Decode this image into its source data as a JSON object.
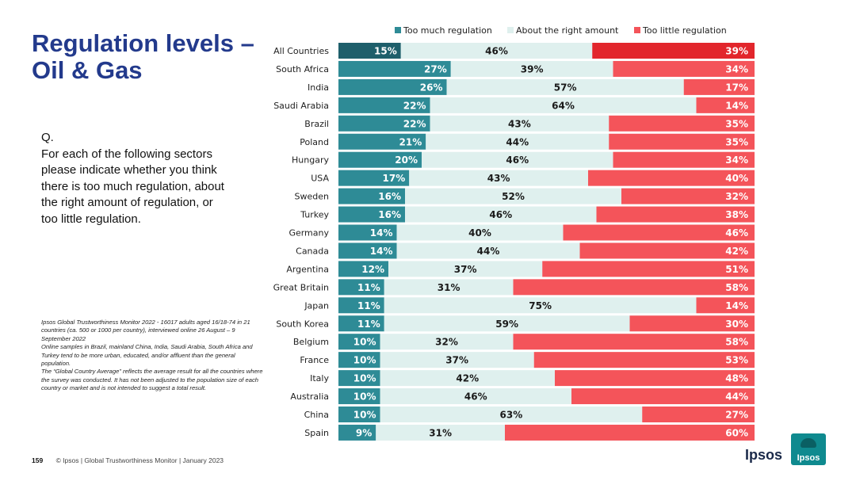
{
  "page": {
    "title": "Regulation levels – Oil & Gas",
    "question_label": "Q.",
    "question_text": "For each of the following sectors please indicate whether you think there is too much regulation, about the right amount of regulation, or too little regulation.",
    "notes": [
      "Ipsos Global Trustworthiness Monitor 2022 - 16017 adults aged 16/18-74 in 21 countries (ca. 500 or 1000 per country), interviewed online 26 August – 9 September 2022",
      "Online samples in Brazil, mainland China, India, Saudi Arabia, South Africa and Turkey tend to be more urban, educated, and/or affluent than the general population.",
      "The “Global Country Average” reflects the average result for all the countries where the survey was conducted. It has not been adjusted to the population size of each country or market and is not intended to suggest a total result."
    ],
    "page_number": "159",
    "footer": "© Ipsos | Global Trustworthiness Monitor | January 2023",
    "logo_text": "Ipsos",
    "logo_badge": "Ipsos"
  },
  "colors": {
    "title": "#233a8c",
    "too_much": "#2e8b96",
    "too_much_highlight": "#1e5f6b",
    "about_right": "#dff0ee",
    "too_little": "#f4545a",
    "too_little_highlight": "#e2262c"
  },
  "chart_data": {
    "type": "bar",
    "orientation": "horizontal",
    "stacked": true,
    "percent_scale": true,
    "title": "Regulation levels – Oil & Gas",
    "legend_position": "top",
    "categories": [
      "All Countries",
      "South Africa",
      "India",
      "Saudi Arabia",
      "Brazil",
      "Poland",
      "Hungary",
      "USA",
      "Sweden",
      "Turkey",
      "Germany",
      "Canada",
      "Argentina",
      "Great Britain",
      "Japan",
      "South Korea",
      "Belgium",
      "France",
      "Italy",
      "Australia",
      "China",
      "Spain"
    ],
    "highlight_category": "All Countries",
    "series": [
      {
        "name": "Too much regulation",
        "values": [
          15,
          27,
          26,
          22,
          22,
          21,
          20,
          17,
          16,
          16,
          14,
          14,
          12,
          11,
          11,
          11,
          10,
          10,
          10,
          10,
          10,
          9
        ]
      },
      {
        "name": "About the right amount",
        "values": [
          46,
          39,
          57,
          64,
          43,
          44,
          46,
          43,
          52,
          46,
          40,
          44,
          37,
          31,
          75,
          59,
          32,
          37,
          42,
          46,
          63,
          31
        ]
      },
      {
        "name": "Too little regulation",
        "values": [
          39,
          34,
          17,
          14,
          35,
          35,
          34,
          40,
          32,
          38,
          46,
          42,
          51,
          58,
          14,
          30,
          58,
          53,
          48,
          44,
          27,
          60
        ]
      }
    ]
  }
}
